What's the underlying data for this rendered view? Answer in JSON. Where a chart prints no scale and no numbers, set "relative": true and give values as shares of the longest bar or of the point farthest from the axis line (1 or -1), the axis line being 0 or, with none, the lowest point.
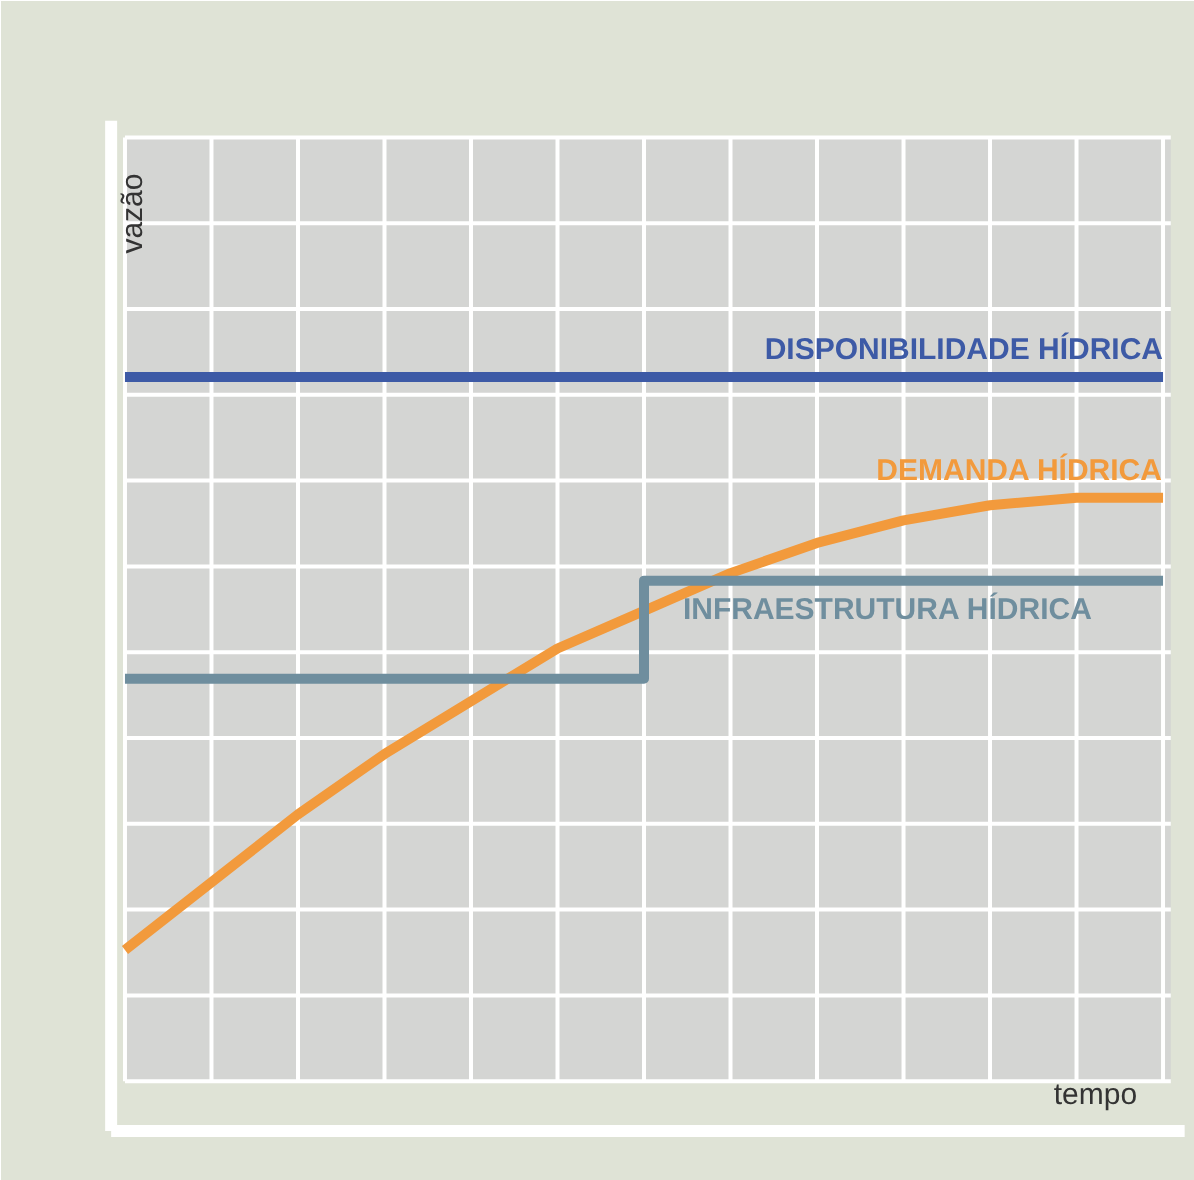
{
  "chart_data": {
    "type": "line",
    "relative": true,
    "grid": true,
    "xlabel": "tempo",
    "ylabel": "vazão",
    "categories": [
      null,
      null,
      null,
      null,
      null,
      null,
      null,
      null,
      null,
      null,
      null,
      null,
      null
    ],
    "series": [
      {
        "name": "DISPONIBILIDADE HÍDRICA",
        "color": "#3d5aa6",
        "values": [
          1,
          1,
          1,
          1,
          1,
          1,
          1,
          1,
          1,
          1,
          1,
          1,
          1
        ]
      },
      {
        "name": "DEMANDA HÍDRICA",
        "color": "#f29a3c",
        "values": [
          0.24,
          0.33,
          0.42,
          0.5,
          0.57,
          0.64,
          0.69,
          0.74,
          0.78,
          0.81,
          0.83,
          0.84,
          0.84
        ]
      },
      {
        "name": "INFRAESTRUTURA HÍDRICA",
        "type": "step",
        "color": "#6f8e9e",
        "values": [
          0.6,
          0.6,
          0.6,
          0.6,
          0.6,
          0.6,
          0.73,
          0.73,
          0.73,
          0.73,
          0.73,
          0.73,
          0.73
        ]
      }
    ]
  }
}
